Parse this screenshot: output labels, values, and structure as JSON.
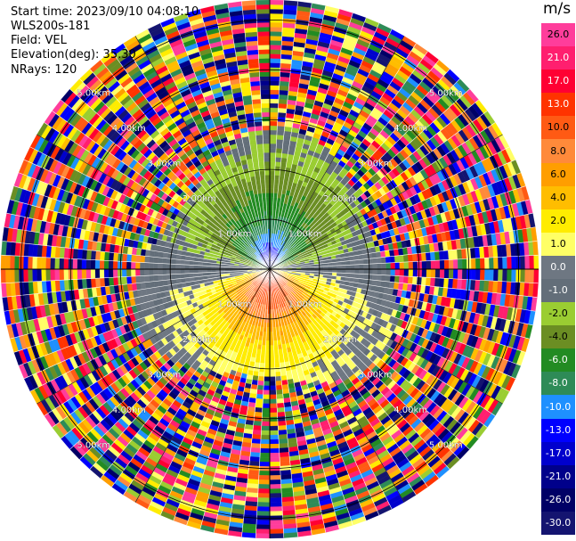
{
  "info": {
    "start_time": "Start time: 2023/09/10 04:08:10",
    "instrument": "WLS200s-181",
    "field": "Field: VEL",
    "elevation": "Elevation(deg): 35.30",
    "nrays": "NRays: 120"
  },
  "colorbar": {
    "unit": "m/s",
    "ticks": [
      "26.0",
      "21.0",
      "17.0",
      "13.0",
      "10.0",
      "8.0",
      "6.0",
      "4.0",
      "2.0",
      "1.0",
      "0.0",
      "-1.0",
      "-2.0",
      "-4.0",
      "-6.0",
      "-8.0",
      "-10.0",
      "-13.0",
      "-17.0",
      "-21.0",
      "-26.0",
      "-30.0"
    ],
    "colors": [
      "#ff3d9b",
      "#ff1f6f",
      "#ff0033",
      "#ff3300",
      "#ff5a14",
      "#ff8a3a",
      "#ff9e00",
      "#ffbd00",
      "#ffec00",
      "#ffff66",
      "#6e7782",
      "#636e79",
      "#9acd32",
      "#6b8e23",
      "#228b22",
      "#2e8b57",
      "#1e90ff",
      "#0000ff",
      "#0000cd",
      "#00008b",
      "#000066",
      "#141470"
    ]
  },
  "chart_data": {
    "type": "ppi",
    "field": "VEL",
    "unit": "m/s",
    "nrays": 120,
    "elevation_deg": 35.3,
    "range_rings_km": [
      1.0,
      2.0,
      3.0,
      4.0,
      5.0
    ],
    "ring_labels": [
      "1.00km",
      "2.00km",
      "3.00km",
      "4.00km",
      "5.00km"
    ],
    "max_range_km": 5.4,
    "colorbar_ticks": [
      26.0,
      21.0,
      17.0,
      13.0,
      10.0,
      8.0,
      6.0,
      4.0,
      2.0,
      1.0,
      0.0,
      -1.0,
      -2.0,
      -4.0,
      -6.0,
      -8.0,
      -10.0,
      -13.0,
      -17.0,
      -21.0,
      -26.0,
      -30.0
    ],
    "radial_velocity_profile": {
      "range_km": [
        0.2,
        0.5,
        1.0,
        1.5,
        2.0,
        2.5
      ],
      "toward_south_ms": [
        17.0,
        13.0,
        8.0,
        4.0,
        2.0,
        1.0
      ],
      "toward_north_ms": [
        -13.0,
        -10.0,
        -6.0,
        -4.0,
        -2.0,
        -1.0
      ]
    },
    "noise_beyond_km": 2.5
  }
}
